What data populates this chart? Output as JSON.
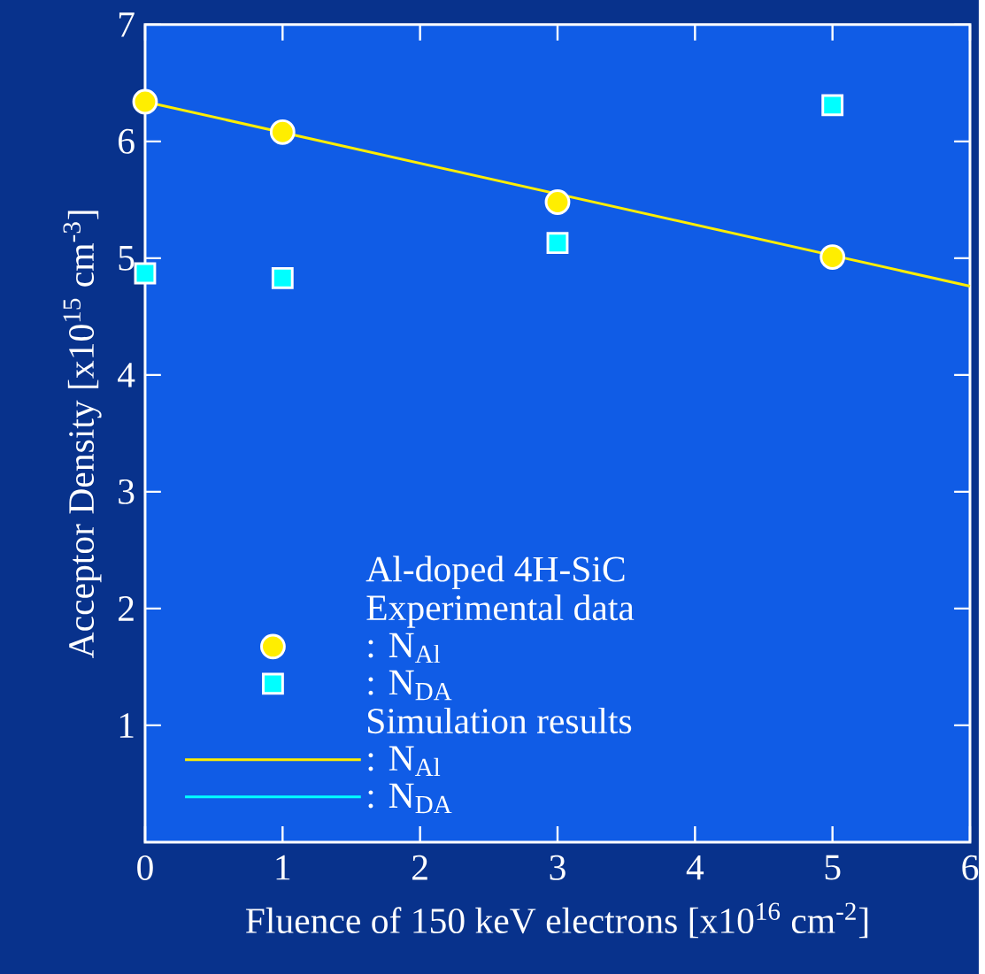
{
  "chart_data": {
    "type": "scatter",
    "xlabel": "Fluence of 150 keV electrons  [x10$^{16}$ cm$^{-2}$]",
    "ylabel": "Acceptor Density  [x10$^{15}$ cm$^{-3}$]",
    "legend_title": "Al-doped 4H-SiC",
    "annotations": [
      "Experimental data",
      "Simulation results"
    ],
    "x": [
      0,
      1,
      3,
      5
    ],
    "xlim": [
      0,
      6
    ],
    "ylim": [
      0,
      7
    ],
    "xticks": [
      0,
      1,
      2,
      3,
      4,
      5,
      6
    ],
    "yticks": [
      1,
      2,
      3,
      4,
      5,
      6,
      7
    ],
    "legend": "bottom left",
    "grid": false,
    "series": [
      {
        "name": ": N$_{Al}$",
        "color": "#ffee00",
        "marker": "circle",
        "values": [
          6.34,
          6.08,
          5.48,
          5.01
        ]
      },
      {
        "name": ": N$_{DA}$",
        "color": "#00ffff",
        "marker": "square",
        "values": [
          4.87,
          4.83,
          5.13,
          6.31
        ]
      },
      {
        "name": ": N$_{Al}$",
        "type": "line",
        "color": "#ffee00",
        "marker": "none",
        "x": [
          0,
          6
        ],
        "values": [
          6.34,
          4.76
        ]
      },
      {
        "name": ": N$_{DA}$",
        "type": "line",
        "color": "#00ffff",
        "marker": "none",
        "values": [
          null,
          null,
          null,
          null
        ]
      }
    ]
  }
}
